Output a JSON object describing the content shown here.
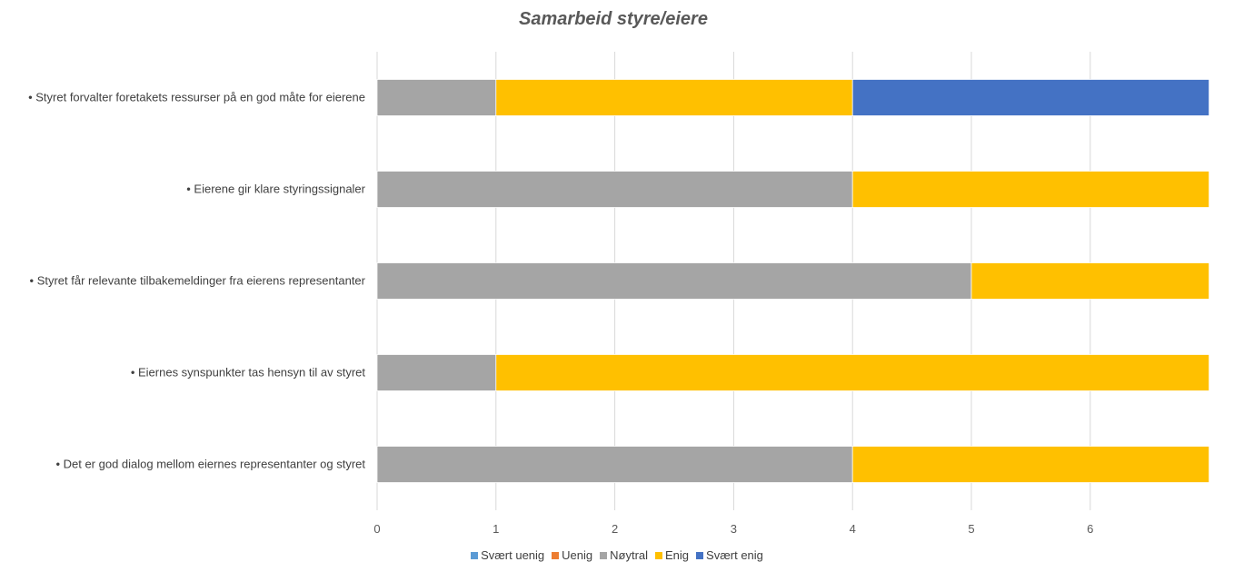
{
  "chart_data": {
    "type": "bar",
    "orientation": "horizontal",
    "stacked": true,
    "title": "Samarbeid styre/eiere",
    "categories": [
      "• Styret forvalter foretakets ressurser på en god måte for eierene",
      "• Eierene gir klare styringssignaler",
      "• Styret får relevante tilbakemeldinger fra eierens representanter",
      "• Eiernes synspunkter tas hensyn til av styret",
      "• Det er god dialog mellom eiernes representanter og styret"
    ],
    "series": [
      {
        "name": "Svært uenig",
        "color": "#5B9BD5",
        "values": [
          0,
          0,
          0,
          0,
          0
        ]
      },
      {
        "name": "Uenig",
        "color": "#ED7D31",
        "values": [
          0,
          0,
          0,
          0,
          0
        ]
      },
      {
        "name": "Nøytral",
        "color": "#A5A5A5",
        "values": [
          1,
          4,
          5,
          1,
          4
        ]
      },
      {
        "name": "Enig",
        "color": "#FFC000",
        "values": [
          3,
          3,
          2,
          6,
          3
        ]
      },
      {
        "name": "Svært enig",
        "color": "#4472C4",
        "values": [
          3,
          0,
          0,
          0,
          0
        ]
      }
    ],
    "xlim": [
      0,
      7
    ],
    "x_ticks": [
      0,
      1,
      2,
      3,
      4,
      5,
      6
    ],
    "grid": true,
    "legend_position": "bottom"
  }
}
